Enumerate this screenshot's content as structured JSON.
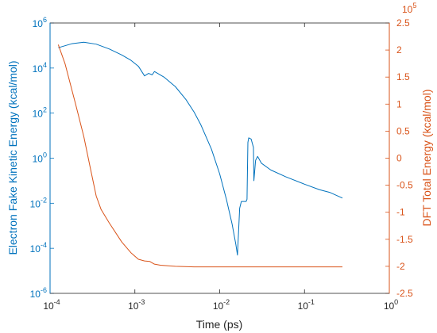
{
  "chart_data": {
    "type": "line",
    "xlabel": "Time (ps)",
    "x_scale": "log",
    "xlim": [
      0.0001,
      1
    ],
    "xticks": [
      {
        "value": 0.0001,
        "base": "10",
        "exp": "-4"
      },
      {
        "value": 0.001,
        "base": "10",
        "exp": "-3"
      },
      {
        "value": 0.01,
        "base": "10",
        "exp": "-2"
      },
      {
        "value": 0.1,
        "base": "10",
        "exp": "-1"
      },
      {
        "value": 1,
        "base": "10",
        "exp": "0"
      }
    ],
    "y_left": {
      "label": "Electron Fake Kinetic Energy (kcal/mol)",
      "scale": "log",
      "lim": [
        1e-06,
        1000000
      ],
      "color": "#0072bd",
      "ticks": [
        {
          "value": 1e-06,
          "base": "10",
          "exp": "-6"
        },
        {
          "value": 0.0001,
          "base": "10",
          "exp": "-4"
        },
        {
          "value": 0.01,
          "base": "10",
          "exp": "-2"
        },
        {
          "value": 1,
          "base": "10",
          "exp": "0"
        },
        {
          "value": 100,
          "base": "10",
          "exp": "2"
        },
        {
          "value": 10000,
          "base": "10",
          "exp": "4"
        },
        {
          "value": 1000000,
          "base": "10",
          "exp": "6"
        }
      ]
    },
    "y_right": {
      "label": "DFT Total Energy (kcal/mol)",
      "scale": "linear",
      "lim": [
        -250000,
        250000
      ],
      "exponent_label": {
        "base": "10",
        "exp": "5"
      },
      "color": "#d95319",
      "ticks": [
        {
          "value": 250000,
          "label": "2.5"
        },
        {
          "value": 200000,
          "label": "2"
        },
        {
          "value": 150000,
          "label": "1.5"
        },
        {
          "value": 100000,
          "label": "1"
        },
        {
          "value": 50000,
          "label": "0.5"
        },
        {
          "value": 0,
          "label": "0"
        },
        {
          "value": -50000,
          "label": "-0.5"
        },
        {
          "value": -100000,
          "label": "-1"
        },
        {
          "value": -150000,
          "label": "-1.5"
        },
        {
          "value": -200000,
          "label": "-2"
        },
        {
          "value": -250000,
          "label": "-2.5"
        }
      ]
    },
    "series": [
      {
        "axis": "left",
        "color": "#0072bd",
        "points": [
          [
            0.000125,
            80000
          ],
          [
            0.00018,
            120000
          ],
          [
            0.00025,
            140000
          ],
          [
            0.00035,
            115000
          ],
          [
            0.0005,
            70000
          ],
          [
            0.0007,
            38000
          ],
          [
            0.0009,
            22000
          ],
          [
            0.0011,
            12000
          ],
          [
            0.0013,
            4500
          ],
          [
            0.00145,
            5800
          ],
          [
            0.0016,
            5000
          ],
          [
            0.0017,
            7000
          ],
          [
            0.0022,
            4000
          ],
          [
            0.003,
            1500
          ],
          [
            0.004,
            400
          ],
          [
            0.005,
            110
          ],
          [
            0.006,
            30
          ],
          [
            0.008,
            2.5
          ],
          [
            0.01,
            0.2
          ],
          [
            0.012,
            0.015
          ],
          [
            0.014,
            0.0012
          ],
          [
            0.0155,
            0.00015
          ],
          [
            0.0162,
            5e-05
          ],
          [
            0.0172,
            0.006
          ],
          [
            0.018,
            0.012
          ],
          [
            0.0205,
            0.012
          ],
          [
            0.021,
            0.015
          ],
          [
            0.0215,
            5
          ],
          [
            0.022,
            8
          ],
          [
            0.0235,
            7
          ],
          [
            0.025,
            3
          ],
          [
            0.0253,
            0.1
          ],
          [
            0.0265,
            0.8
          ],
          [
            0.028,
            1.2
          ],
          [
            0.031,
            0.6
          ],
          [
            0.04,
            0.3
          ],
          [
            0.06,
            0.15
          ],
          [
            0.1,
            0.07
          ],
          [
            0.15,
            0.04
          ],
          [
            0.2,
            0.03
          ],
          [
            0.28,
            0.017
          ]
        ]
      },
      {
        "axis": "right",
        "color": "#d95319",
        "points": [
          [
            0.000125,
            210000
          ],
          [
            0.00015,
            175000
          ],
          [
            0.0002,
            100000
          ],
          [
            0.00025,
            40000
          ],
          [
            0.0003,
            -20000
          ],
          [
            0.00035,
            -70000
          ],
          [
            0.0004,
            -95000
          ],
          [
            0.0005,
            -120000
          ],
          [
            0.0007,
            -155000
          ],
          [
            0.0009,
            -175000
          ],
          [
            0.0011,
            -187000
          ],
          [
            0.0013,
            -190000
          ],
          [
            0.0015,
            -191000
          ],
          [
            0.0017,
            -196000
          ],
          [
            0.002,
            -198000
          ],
          [
            0.003,
            -200000
          ],
          [
            0.005,
            -201000
          ],
          [
            0.01,
            -201000
          ],
          [
            0.05,
            -201000
          ],
          [
            0.1,
            -201000
          ],
          [
            0.28,
            -201000
          ]
        ]
      }
    ]
  }
}
